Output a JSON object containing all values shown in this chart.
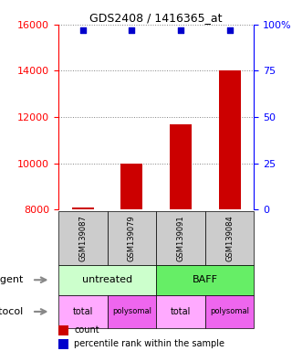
{
  "title": "GDS2408 / 1416365_at",
  "samples": [
    "GSM139087",
    "GSM139079",
    "GSM139091",
    "GSM139084"
  ],
  "counts": [
    8100,
    10000,
    11700,
    14000
  ],
  "ylim_left": [
    8000,
    16000
  ],
  "yticks_left": [
    8000,
    10000,
    12000,
    14000,
    16000
  ],
  "yticks_right": [
    0,
    25,
    50,
    75
  ],
  "ytick_right_top_label": "100%",
  "agent_labels": [
    [
      "untreated",
      2
    ],
    [
      "BAFF",
      2
    ]
  ],
  "protocol_labels": [
    "total",
    "polysomal",
    "total",
    "polysomal"
  ],
  "agent_colors": [
    "#ccffcc",
    "#66ee66"
  ],
  "protocol_colors_odd": "#ffaaff",
  "protocol_colors_even": "#ee66ee",
  "sample_box_color": "#cccccc",
  "bar_color": "#cc0000",
  "dot_color": "#0000cc",
  "dot_value": 15750,
  "bar_bottom": 8000,
  "legend_count_color": "#cc0000",
  "legend_pct_color": "#0000cc"
}
